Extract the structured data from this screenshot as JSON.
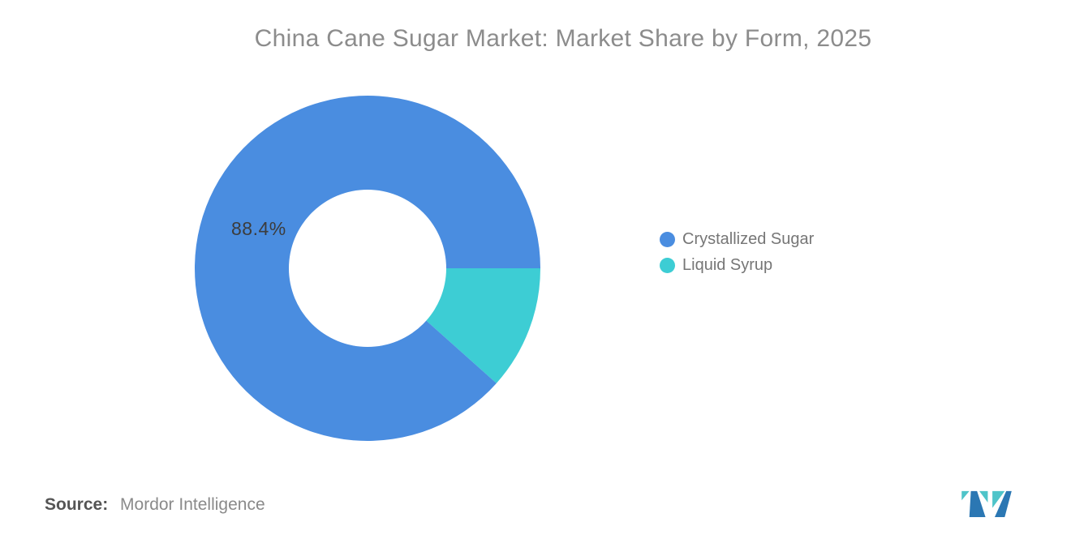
{
  "title": "China Cane Sugar Market: Market Share by Form, 2025",
  "chart_data": {
    "type": "pie",
    "donut": true,
    "title": "China Cane Sugar Market: Market Share by Form, 2025",
    "categories": [
      "Crystallized Sugar",
      "Liquid Syrup"
    ],
    "values": [
      88.4,
      11.6
    ],
    "unit": "%",
    "colors": [
      "#4A8DE0",
      "#3DCDD4"
    ],
    "data_label": "88.4%",
    "legend_position": "right",
    "first_slice_boundary": "3-oclock"
  },
  "legend": {
    "items": [
      {
        "label": "Crystallized Sugar",
        "color": "#4A8DE0"
      },
      {
        "label": "Liquid Syrup",
        "color": "#3DCDD4"
      }
    ]
  },
  "source": {
    "prefix": "Source:",
    "name": "Mordor Intelligence"
  },
  "logo": {
    "name": "Mordor Intelligence",
    "teal": "#4EC4C9",
    "blue": "#2B77B3"
  }
}
